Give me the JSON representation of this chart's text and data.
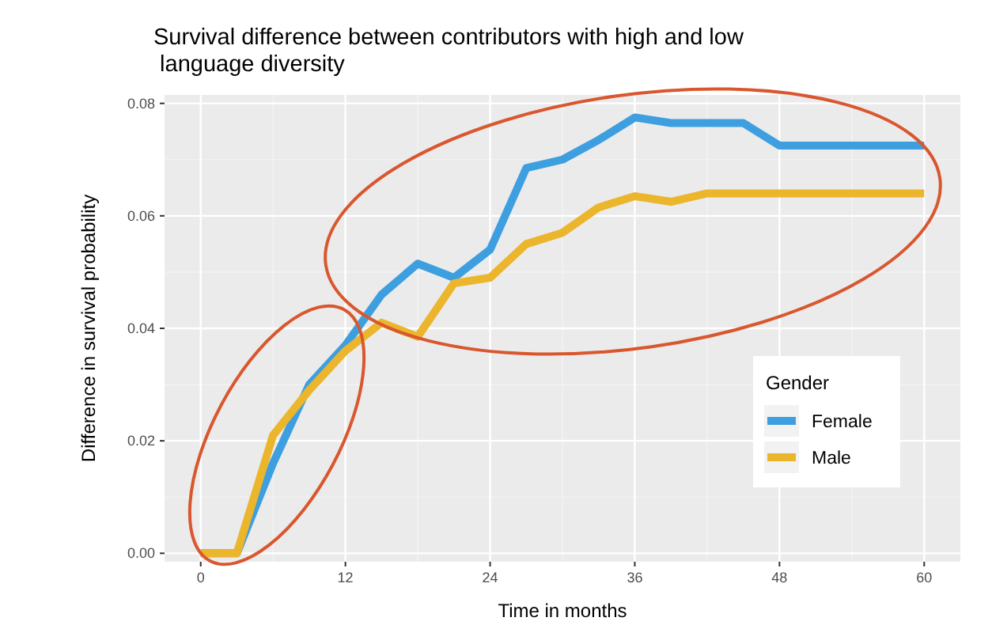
{
  "chart_data": {
    "type": "line",
    "title": "Survival difference between contributors with high and low\n language diversity",
    "xlabel": "Time in months",
    "ylabel": "Difference in survival probability",
    "legend_title": "Gender",
    "x": [
      0,
      3,
      6,
      9,
      12,
      15,
      18,
      21,
      24,
      27,
      30,
      33,
      36,
      39,
      42,
      45,
      48,
      51,
      54,
      57,
      60
    ],
    "series": [
      {
        "name": "Female",
        "color": "#3d9fe0",
        "values": [
          0,
          0,
          0.016,
          0.03,
          0.037,
          0.046,
          0.0515,
          0.049,
          0.054,
          0.0685,
          0.07,
          0.0735,
          0.0775,
          0.0765,
          0.0765,
          0.0765,
          0.0725,
          0.0725,
          0.0725,
          0.0725,
          0.0725
        ]
      },
      {
        "name": "Male",
        "color": "#ebb52c",
        "values": [
          0,
          0,
          0.021,
          0.029,
          0.036,
          0.041,
          0.0385,
          0.048,
          0.049,
          0.055,
          0.057,
          0.0615,
          0.0635,
          0.0625,
          0.064,
          0.064,
          0.064,
          0.064,
          0.064,
          0.064,
          0.064
        ]
      }
    ],
    "xlim": [
      -3,
      63
    ],
    "xticks": [
      0,
      12,
      24,
      36,
      48,
      60
    ],
    "ylim": [
      -0.0015,
      0.0815
    ],
    "yticks": [
      {
        "value": 0,
        "label": "0.00"
      },
      {
        "value": 0.02,
        "label": "0.02"
      },
      {
        "value": 0.04,
        "label": "0.04"
      },
      {
        "value": 0.06,
        "label": "0.06"
      },
      {
        "value": 0.08,
        "label": "0.08"
      }
    ],
    "grid": true,
    "legend": "bottom right",
    "line_style": "solid",
    "marker": "none"
  }
}
